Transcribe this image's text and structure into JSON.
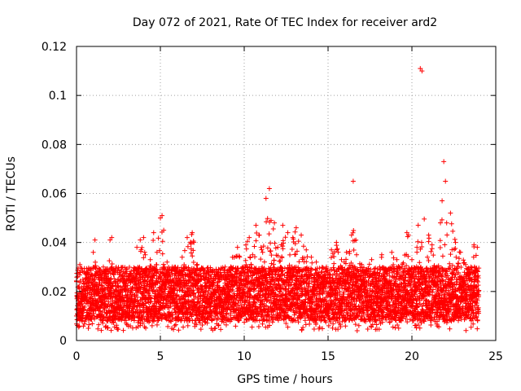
{
  "chart_data": {
    "type": "scatter",
    "title": "Day 072 of 2021, Rate Of TEC Index for receiver ard2",
    "xlabel": "GPS time / hours",
    "ylabel": "ROTI / TECUs",
    "xlim": [
      0,
      25
    ],
    "ylim": [
      0,
      0.12
    ],
    "xticks": [
      0,
      5,
      10,
      15,
      20,
      25
    ],
    "xtick_labels": [
      "0",
      "5",
      "10",
      "15",
      "20",
      "25"
    ],
    "yticks": [
      0,
      0.02,
      0.04,
      0.06,
      0.08,
      0.1,
      0.12
    ],
    "ytick_labels": [
      "0",
      "0.02",
      "0.04",
      "0.06",
      "0.08",
      "0.1",
      "0.12"
    ],
    "grid": true,
    "marker": "+",
    "color": "#ff0000",
    "series": [
      {
        "name": "ROTI",
        "description_points": "Dense band of points spanning 0-24 h, mostly between 0.005 and 0.035 TECU/s",
        "x": [
          0.0,
          0.1,
          0.2,
          0.3,
          0.4,
          0.5,
          0.7,
          0.8,
          1.0,
          1.1,
          1.2,
          1.4,
          1.6,
          1.8,
          2.0,
          2.1,
          2.2,
          2.5,
          2.8,
          3.0,
          3.3,
          3.6,
          3.8,
          4.0,
          4.1,
          4.2,
          4.4,
          4.6,
          4.8,
          5.0,
          5.1,
          5.2,
          5.4,
          5.6,
          5.8,
          6.0,
          6.3,
          6.6,
          6.9,
          7.0,
          7.2,
          7.5,
          7.8,
          8.0,
          8.3,
          8.6,
          9.0,
          9.3,
          9.6,
          9.9,
          10.1,
          10.3,
          10.5,
          10.7,
          10.9,
          11.1,
          11.3,
          11.5,
          11.6,
          11.8,
          12.0,
          12.3,
          12.6,
          12.9,
          13.1,
          13.4,
          13.7,
          14.0,
          14.3,
          14.6,
          14.9,
          15.2,
          15.5,
          15.8,
          16.1,
          16.4,
          16.5,
          16.7,
          17.0,
          17.3,
          17.6,
          17.9,
          18.2,
          18.5,
          18.8,
          19.1,
          19.4,
          19.7,
          19.8,
          20.0,
          20.3,
          20.5,
          20.6,
          20.8,
          21.0,
          21.2,
          21.5,
          21.7,
          21.8,
          21.9,
          22.0,
          22.3,
          22.6,
          22.9,
          23.2,
          23.5,
          23.7,
          23.9
        ],
        "y": [
          0.024,
          0.015,
          0.031,
          0.012,
          0.02,
          0.018,
          0.027,
          0.014,
          0.036,
          0.041,
          0.022,
          0.017,
          0.03,
          0.025,
          0.041,
          0.042,
          0.019,
          0.016,
          0.028,
          0.021,
          0.026,
          0.038,
          0.041,
          0.042,
          0.035,
          0.029,
          0.033,
          0.044,
          0.036,
          0.05,
          0.051,
          0.045,
          0.032,
          0.026,
          0.019,
          0.028,
          0.034,
          0.042,
          0.044,
          0.04,
          0.031,
          0.022,
          0.018,
          0.029,
          0.025,
          0.017,
          0.026,
          0.034,
          0.038,
          0.03,
          0.039,
          0.042,
          0.035,
          0.047,
          0.043,
          0.036,
          0.058,
          0.062,
          0.049,
          0.048,
          0.038,
          0.047,
          0.044,
          0.042,
          0.046,
          0.043,
          0.037,
          0.034,
          0.032,
          0.028,
          0.03,
          0.037,
          0.04,
          0.033,
          0.036,
          0.043,
          0.065,
          0.035,
          0.031,
          0.029,
          0.033,
          0.024,
          0.035,
          0.028,
          0.036,
          0.033,
          0.03,
          0.044,
          0.043,
          0.033,
          0.038,
          0.111,
          0.11,
          0.025,
          0.043,
          0.039,
          0.03,
          0.048,
          0.057,
          0.073,
          0.065,
          0.052,
          0.04,
          0.036,
          0.031,
          0.028,
          0.039,
          0.038
        ]
      }
    ]
  }
}
